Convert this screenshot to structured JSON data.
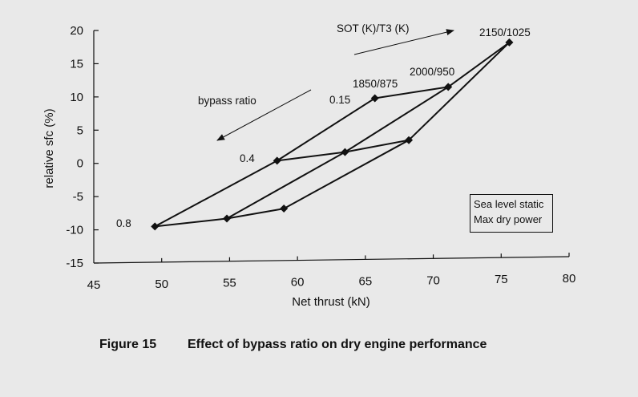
{
  "chart_data": {
    "type": "line",
    "title": "",
    "xlabel": "Net thrust (kN)",
    "ylabel": "relative sfc (%)",
    "xlim": [
      45,
      80
    ],
    "ylim": [
      -15,
      20
    ],
    "xticks": [
      "45",
      "50",
      "55",
      "60",
      "65",
      "70",
      "75",
      "80"
    ],
    "yticks": [
      "-15",
      "-10",
      "-5",
      "0",
      "5",
      "10",
      "15",
      "20"
    ],
    "series": [
      {
        "name": "bypass ratio 0.8",
        "points": [
          [
            49.5,
            -9.5
          ],
          [
            54.8,
            -8.3
          ],
          [
            59.0,
            -6.8
          ]
        ]
      },
      {
        "name": "bypass ratio 0.4",
        "points": [
          [
            58.5,
            0.4
          ],
          [
            63.5,
            1.7
          ],
          [
            68.2,
            3.5
          ]
        ]
      },
      {
        "name": "bypass ratio 0.15",
        "points": [
          [
            65.7,
            9.8
          ],
          [
            71.1,
            11.5
          ],
          [
            75.6,
            18.2
          ]
        ]
      },
      {
        "name": "SOT/T3 1850/875",
        "points": [
          [
            49.5,
            -9.5
          ],
          [
            58.5,
            0.4
          ],
          [
            65.7,
            9.8
          ]
        ]
      },
      {
        "name": "SOT/T3 2000/950",
        "points": [
          [
            54.8,
            -8.3
          ],
          [
            63.5,
            1.7
          ],
          [
            71.1,
            11.5
          ]
        ]
      },
      {
        "name": "SOT/T3 2150/1025",
        "points": [
          [
            59.0,
            -6.8
          ],
          [
            68.2,
            3.5
          ],
          [
            75.6,
            18.2
          ]
        ]
      }
    ],
    "annotations": {
      "sot_arrow_label": "SOT (K)/T3 (K)",
      "bypass_arrow_label": "bypass ratio",
      "label_2150": "2150/1025",
      "label_2000": "2000/950",
      "label_1850": "1850/875",
      "label_015": "0.15",
      "label_04": "0.4",
      "label_08": "0.8"
    },
    "legend": {
      "line1": "Sea level static",
      "line2": "Max dry power"
    }
  },
  "caption": {
    "figure_number": "Figure 15",
    "text": "Effect of bypass ratio on dry engine performance"
  }
}
